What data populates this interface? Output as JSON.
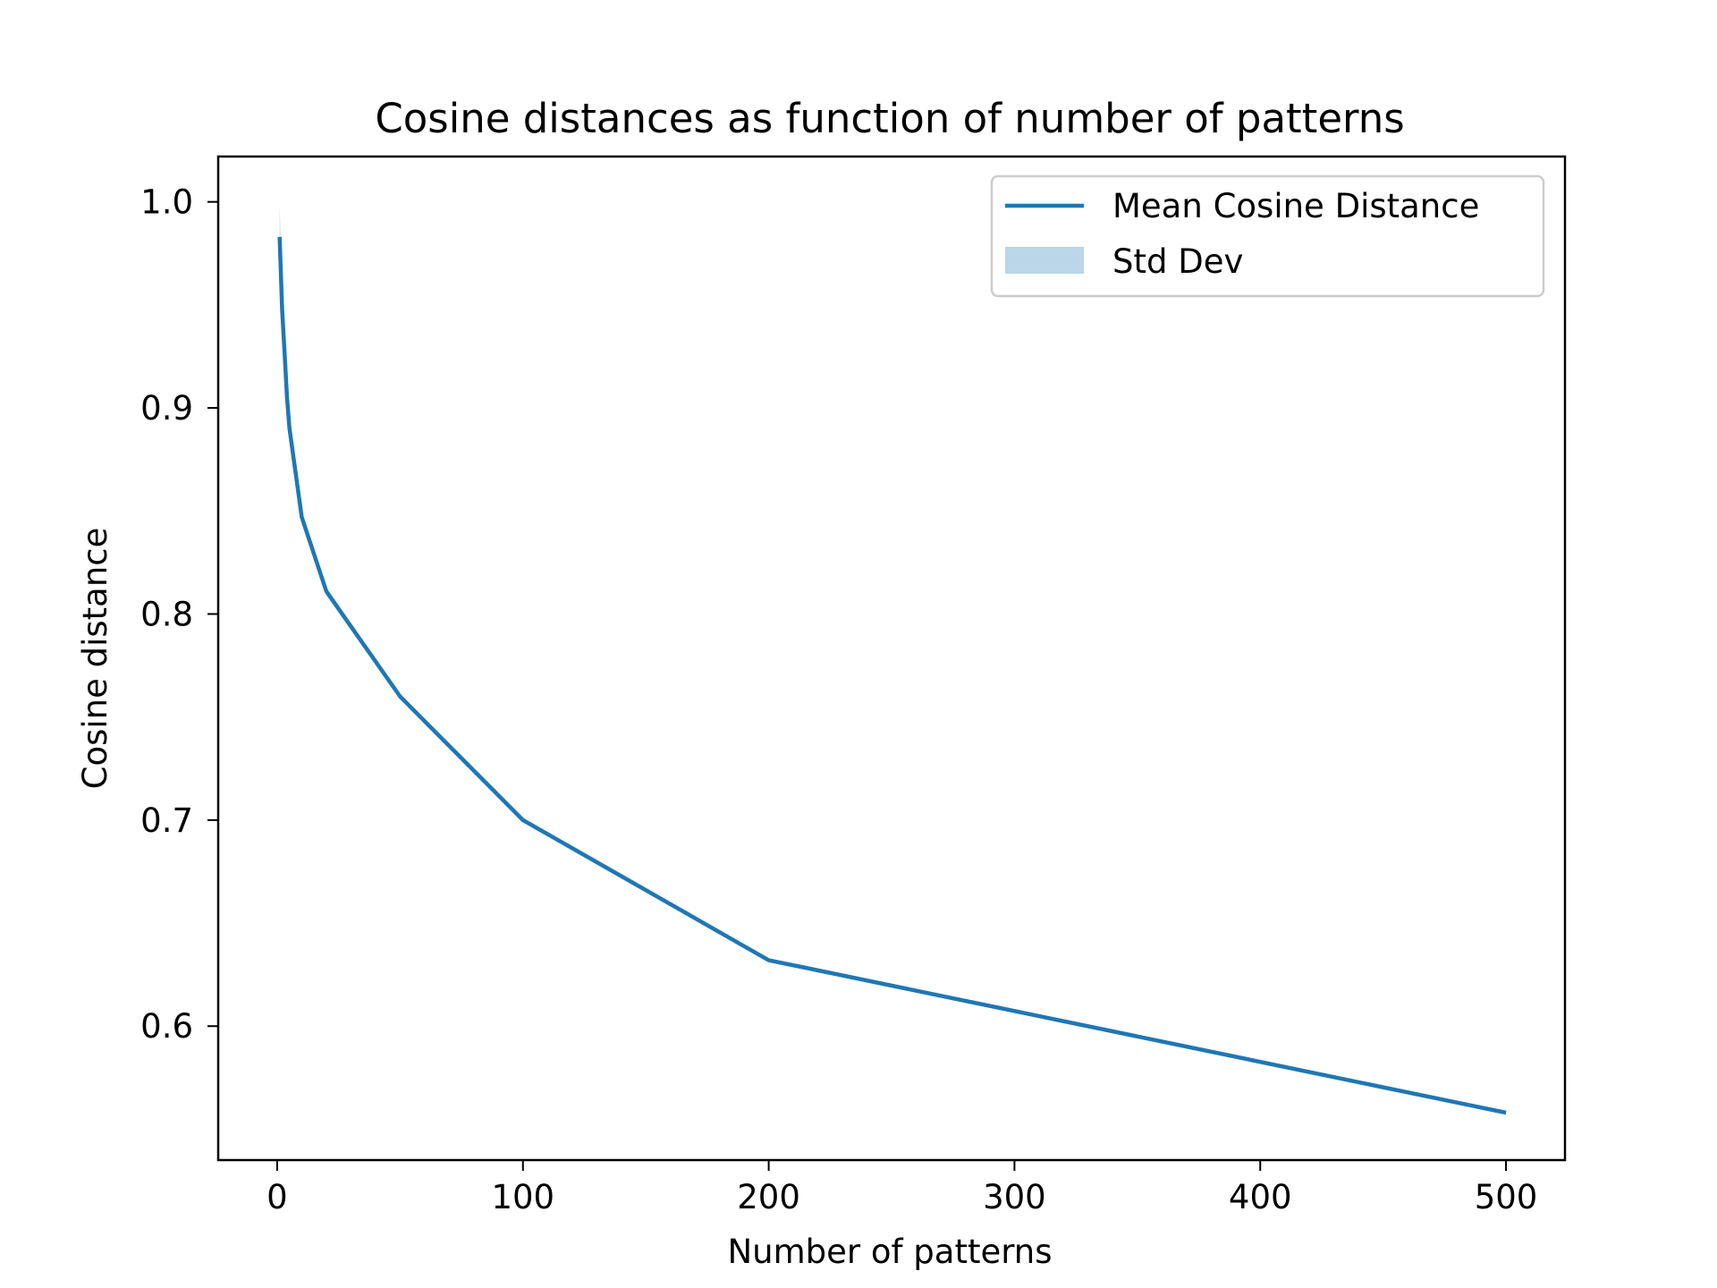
{
  "chart_data": {
    "type": "line",
    "title": "Cosine distances as function of number of patterns",
    "xlabel": "Number of patterns",
    "ylabel": "Cosine distance",
    "xlim": [
      -24,
      524
    ],
    "ylim": [
      0.535,
      1.022
    ],
    "xticks": [
      0,
      100,
      200,
      300,
      400,
      500
    ],
    "yticks": [
      0.6,
      0.7,
      0.8,
      0.9,
      1.0
    ],
    "xtick_labels": [
      "0",
      "100",
      "200",
      "300",
      "400",
      "500"
    ],
    "ytick_labels": [
      "0.6",
      "0.7",
      "0.8",
      "0.9",
      "1.0"
    ],
    "grid": false,
    "legend_position": "top-right",
    "series": [
      {
        "name": "Mean Cosine Distance",
        "color": "#1f77b4",
        "x": [
          1,
          2,
          3,
          4,
          5,
          10,
          20,
          50,
          100,
          200,
          500
        ],
        "y": [
          0.983,
          0.948,
          0.927,
          0.905,
          0.89,
          0.847,
          0.811,
          0.76,
          0.7,
          0.632,
          0.558
        ],
        "std": [
          0.016,
          0.007,
          0.004,
          0.003,
          0.002,
          0.003,
          0.002,
          0.001,
          0.001,
          0.001,
          0.001
        ]
      }
    ],
    "band": {
      "name": "Std Dev",
      "color": "#1f77b4",
      "opacity": 0.3
    }
  }
}
